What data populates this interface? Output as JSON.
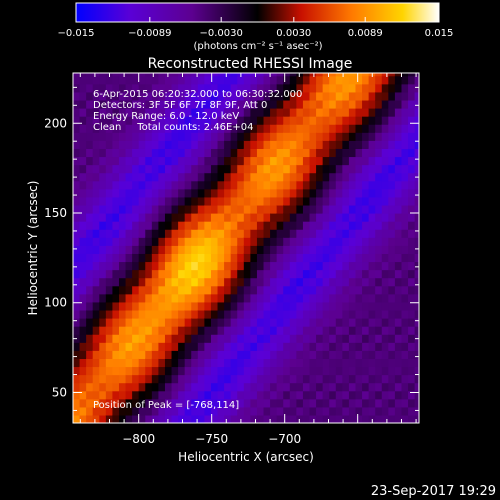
{
  "chart_data": {
    "type": "heatmap",
    "title": "Reconstructed RHESSI Image",
    "xlabel": "Heliocentric X (arcsec)",
    "ylabel": "Heliocentric Y (arcsec)",
    "xlim": [
      -845,
      -608
    ],
    "ylim": [
      33,
      228
    ],
    "x_ticks": [
      -800,
      -750,
      -700
    ],
    "x_tick_labels": [
      "−800",
      "−750",
      "−700"
    ],
    "y_ticks": [
      50,
      100,
      150,
      200
    ],
    "y_tick_labels": [
      "50",
      "100",
      "150",
      "200"
    ],
    "colorbar": {
      "range": [
        -0.015,
        0.015
      ],
      "ticks": [
        -0.015,
        -0.0089,
        -0.003,
        0.003,
        0.0089,
        0.015
      ],
      "tick_labels": [
        "−0.015",
        "−0.0089",
        "−0.0030",
        "0.0030",
        "0.0089",
        "0.015"
      ],
      "unit_label": "(photons cm⁻² s⁻¹ asec⁻²)",
      "colors": [
        "#0000ff",
        "#5a00d6",
        "#5c0090",
        "#000000",
        "#c81000",
        "#ff7a00",
        "#ffd400",
        "#ffffff"
      ]
    },
    "annotations": [
      "6-Apr-2015 06:20:32.000 to 06:30:32.000",
      "Detectors: 3F 5F 6F 7F 8F 9F, Att 0",
      "Energy Range: 6.0 - 12.0 keV",
      "Clean     Total counts: 2.46E+04"
    ],
    "peak_label": "Position of Peak = [-768,114]",
    "peak": {
      "x": -768,
      "y": 114,
      "value": 0.015
    },
    "band": {
      "description_free": true,
      "ridge_through": [
        -768,
        114
      ],
      "slope": 1.0,
      "width": 42,
      "trough_offset": 58
    },
    "timestamp": "23-Sep-2017 19:29",
    "colors": {
      "background": "#000000",
      "text": "#ffffff"
    }
  }
}
